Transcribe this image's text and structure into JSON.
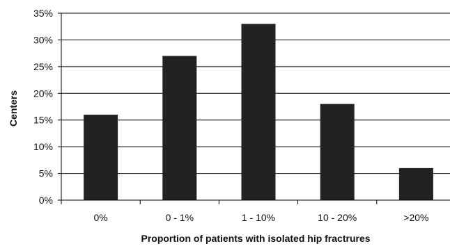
{
  "chart_data": {
    "type": "bar",
    "categories": [
      "0%",
      "0 - 1%",
      "1 - 10%",
      "10 - 20%",
      ">20%"
    ],
    "values": [
      16,
      27,
      33,
      18,
      6
    ],
    "xlabel": "Proportion of patients with isolated hip fractrures",
    "ylabel": "Centers",
    "ylim": [
      0,
      35
    ],
    "yticks": [
      "0%",
      "5%",
      "10%",
      "15%",
      "20%",
      "25%",
      "30%",
      "35%"
    ],
    "grid": true,
    "bar_color": "#222222"
  }
}
